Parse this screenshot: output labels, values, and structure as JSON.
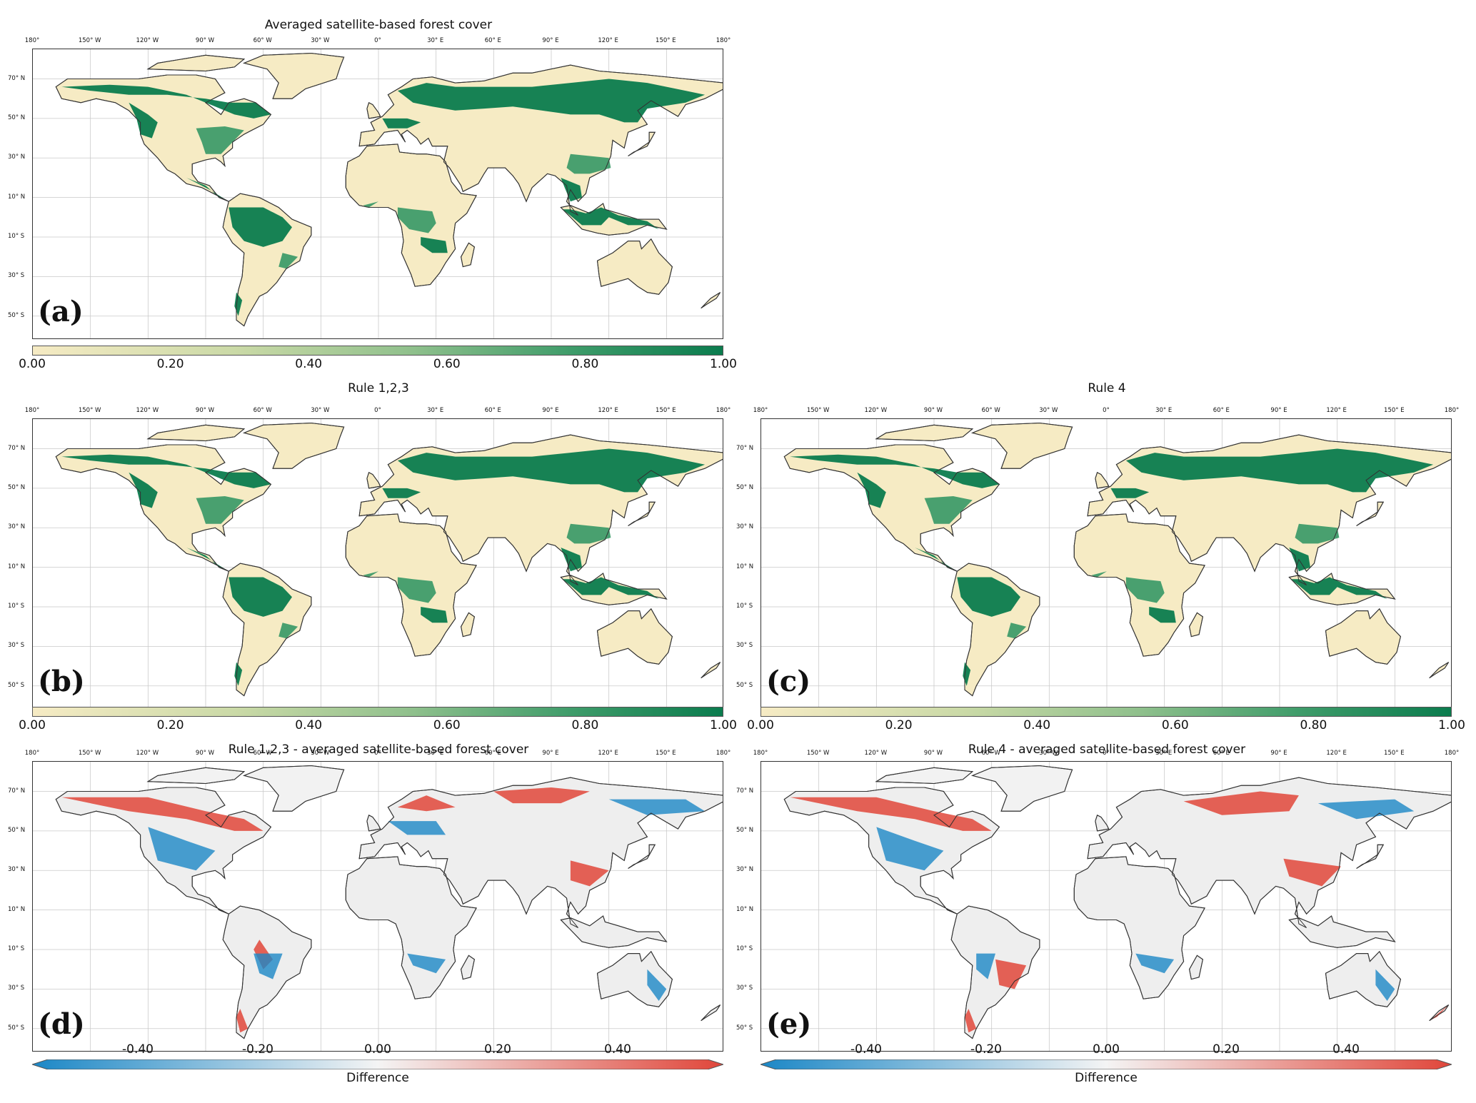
{
  "lon_ticks": [
    "180°",
    "150° W",
    "120° W",
    "90° W",
    "60° W",
    "30° W",
    "0°",
    "30° E",
    "60° E",
    "90° E",
    "120° E",
    "150° E",
    "180°"
  ],
  "lat_ticks": [
    "70° N",
    "50° N",
    "30° N",
    "10° N",
    "10° S",
    "30° S",
    "50° S"
  ],
  "colors": {
    "sand": "#f6ebc4",
    "forest": "#0b7c4e",
    "forest_mid": "#3f9c6a",
    "neg": "#1b87c6",
    "pos": "#e0463a",
    "neutral": "#eeeeee",
    "grid": "#c9c9c9",
    "border": "#333333"
  },
  "panels": [
    {
      "id": "a",
      "label": "(a)",
      "title": "Averaged satellite-based forest cover",
      "type": "forest",
      "colorbar": {
        "ticks": [
          "0.00",
          "0.20",
          "0.40",
          "0.60",
          "0.80",
          "1.00"
        ],
        "label": ""
      }
    },
    {
      "id": "b",
      "label": "(b)",
      "title": "Rule 1,2,3",
      "type": "forest",
      "colorbar": {
        "ticks": [
          "0.00",
          "0.20",
          "0.40",
          "0.60",
          "0.80",
          "1.00"
        ],
        "label": ""
      }
    },
    {
      "id": "c",
      "label": "(c)",
      "title": "Rule 4",
      "type": "forest",
      "colorbar": {
        "ticks": [
          "0.00",
          "0.20",
          "0.40",
          "0.60",
          "0.80",
          "1.00"
        ],
        "label": ""
      }
    },
    {
      "id": "d",
      "label": "(d)",
      "title": "Rule 1,2,3 - averaged satellite-based forest cover",
      "type": "diff",
      "colorbar": {
        "ticks": [
          "-0.40",
          "-0.20",
          "0.00",
          "0.20",
          "0.40"
        ],
        "label": "Difference"
      }
    },
    {
      "id": "e",
      "label": "(e)",
      "title": "Rule 4 - averaged satellite-based forest cover",
      "type": "diff",
      "colorbar": {
        "ticks": [
          "-0.40",
          "-0.20",
          "0.00",
          "0.20",
          "0.40"
        ],
        "label": "Difference"
      }
    }
  ]
}
